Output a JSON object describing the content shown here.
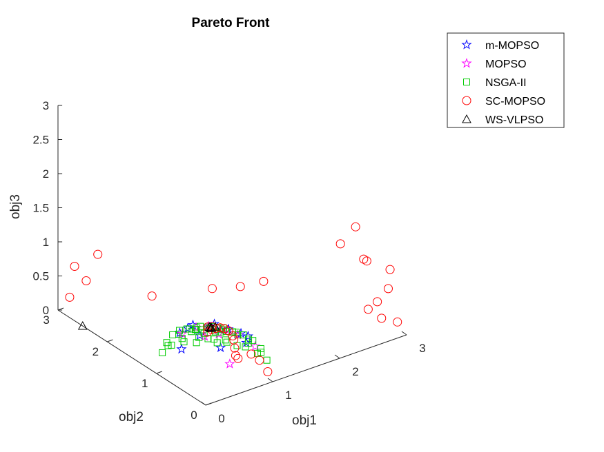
{
  "chart_data": {
    "type": "scatter",
    "projection": "3d",
    "title": "Pareto Front",
    "xlabel": "obj1",
    "ylabel": "obj2",
    "zlabel": "obj3",
    "xlim": [
      0,
      3
    ],
    "ylim": [
      0,
      3
    ],
    "zlim": [
      0,
      3
    ],
    "xticks": [
      "0",
      "1",
      "2",
      "3"
    ],
    "yticks": [
      "0",
      "1",
      "2",
      "3"
    ],
    "zticks": [
      "0",
      "0.5",
      "1",
      "1.5",
      "2",
      "2.5",
      "3"
    ],
    "grid": false,
    "legend_position": "top-right",
    "series": [
      {
        "name": "m-MOPSO",
        "marker": "star",
        "color": "#0000ff",
        "points": [
          [
            0.2,
            0.8,
            0.62
          ],
          [
            0.55,
            0.45,
            0.71
          ],
          [
            0.78,
            0.2,
            0.65
          ],
          [
            0.35,
            0.3,
            0.93
          ],
          [
            0.25,
            0.6,
            0.81
          ],
          [
            0.9,
            0.4,
            0.42
          ],
          [
            0.5,
            0.8,
            0.48
          ],
          [
            0.6,
            0.1,
            0.8
          ],
          [
            0.1,
            0.5,
            0.86
          ],
          [
            0.7,
            0.65,
            0.3
          ],
          [
            0.45,
            0.15,
            0.89
          ],
          [
            0.3,
            0.9,
            0.3
          ]
        ]
      },
      {
        "name": "MOPSO",
        "marker": "star",
        "color": "#ff00ff",
        "points": [
          [
            0.3,
            0.35,
            0.89
          ],
          [
            0.6,
            0.55,
            0.58
          ],
          [
            0.85,
            0.15,
            0.5
          ],
          [
            0.2,
            0.75,
            0.63
          ],
          [
            0.7,
            0.3,
            0.65
          ],
          [
            0.4,
            0.1,
            0.91
          ],
          [
            0.15,
            0.4,
            0.9
          ],
          [
            0.8,
            0.6,
            0.05
          ],
          [
            0.5,
            0.7,
            0.51
          ],
          [
            0.4,
            0.5,
            0.77
          ]
        ]
      },
      {
        "name": "NSGA-II",
        "marker": "square",
        "color": "#00cc00",
        "points": [
          [
            0.95,
            0.05,
            0.31
          ],
          [
            0.86,
            0.05,
            0.51
          ],
          [
            0.74,
            0.05,
            0.67
          ],
          [
            0.6,
            0.05,
            0.8
          ],
          [
            0.44,
            0.05,
            0.9
          ],
          [
            0.26,
            0.05,
            0.96
          ],
          [
            0.05,
            0.1,
            0.99
          ],
          [
            0.05,
            0.28,
            0.96
          ],
          [
            0.05,
            0.45,
            0.89
          ],
          [
            0.05,
            0.6,
            0.8
          ],
          [
            0.05,
            0.74,
            0.67
          ],
          [
            0.05,
            0.86,
            0.5
          ],
          [
            0.05,
            0.95,
            0.31
          ],
          [
            0.15,
            0.9,
            0.41
          ],
          [
            0.3,
            0.85,
            0.43
          ],
          [
            0.45,
            0.75,
            0.49
          ],
          [
            0.6,
            0.65,
            0.46
          ],
          [
            0.72,
            0.55,
            0.42
          ],
          [
            0.85,
            0.35,
            0.4
          ],
          [
            0.92,
            0.2,
            0.35
          ],
          [
            0.5,
            0.5,
            0.7
          ],
          [
            0.4,
            0.6,
            0.69
          ],
          [
            0.6,
            0.4,
            0.69
          ],
          [
            0.3,
            0.7,
            0.65
          ],
          [
            0.7,
            0.3,
            0.65
          ],
          [
            0.25,
            0.45,
            0.86
          ],
          [
            0.45,
            0.25,
            0.86
          ],
          [
            0.35,
            0.35,
            0.87
          ],
          [
            0.2,
            0.6,
            0.77
          ],
          [
            0.6,
            0.2,
            0.77
          ],
          [
            0.15,
            0.75,
            0.64
          ],
          [
            0.75,
            0.15,
            0.64
          ],
          [
            0.8,
            0.45,
            0.39
          ],
          [
            0.45,
            0.8,
            0.39
          ],
          [
            0.55,
            0.7,
            0.46
          ],
          [
            0.7,
            0.55,
            0.46
          ],
          [
            0.65,
            0.65,
            0.39
          ],
          [
            0.82,
            0.25,
            0.51
          ],
          [
            0.25,
            0.82,
            0.51
          ],
          [
            0.9,
            0.1,
            0.42
          ],
          [
            0.1,
            0.9,
            0.42
          ],
          [
            0.2,
            0.2,
            0.96
          ],
          [
            0.12,
            0.35,
            0.93
          ],
          [
            0.35,
            0.12,
            0.93
          ],
          [
            0.55,
            0.55,
            0.63
          ],
          [
            0.38,
            0.48,
            0.79
          ],
          [
            0.48,
            0.38,
            0.79
          ],
          [
            0.62,
            0.3,
            0.72
          ],
          [
            0.3,
            0.62,
            0.72
          ]
        ]
      },
      {
        "name": "SC-MOPSO",
        "marker": "circle",
        "color": "#ff0000",
        "points": [
          [
            0.1,
            0.1,
            0.99
          ],
          [
            0.2,
            0.15,
            0.97
          ],
          [
            0.3,
            0.2,
            0.93
          ],
          [
            0.4,
            0.25,
            0.88
          ],
          [
            0.5,
            0.3,
            0.81
          ],
          [
            0.6,
            0.35,
            0.72
          ],
          [
            0.7,
            0.4,
            0.59
          ],
          [
            0.75,
            0.45,
            0.49
          ],
          [
            0.8,
            0.5,
            0.33
          ],
          [
            0.83,
            0.52,
            0.2
          ],
          [
            0.85,
            0.5,
            0.16
          ],
          [
            0.25,
            0.3,
            0.92
          ],
          [
            0.35,
            0.35,
            0.87
          ],
          [
            0.9,
            0.3,
            0.3
          ],
          [
            0.95,
            0.2,
            0.24
          ],
          [
            1.0,
            0.1,
            0.1
          ],
          [
            2.9,
            0.05,
            0.2
          ],
          [
            2.7,
            0.1,
            0.3
          ],
          [
            2.5,
            0.1,
            0.5
          ],
          [
            2.6,
            0.05,
            0.6
          ],
          [
            2.8,
            0.1,
            0.7
          ],
          [
            2.9,
            0.2,
            0.9
          ],
          [
            2.7,
            0.4,
            1.0
          ],
          [
            2.8,
            0.6,
            0.9
          ],
          [
            2.6,
            0.8,
            1.1
          ],
          [
            2.9,
            0.9,
            1.2
          ],
          [
            0.1,
            2.9,
            0.2
          ],
          [
            0.2,
            2.7,
            0.5
          ],
          [
            0.1,
            2.8,
            0.7
          ],
          [
            0.3,
            2.6,
            0.9
          ],
          [
            1.4,
            1.2,
            0.7
          ],
          [
            1.2,
            1.5,
            0.6
          ],
          [
            1.6,
            1.0,
            0.8
          ],
          [
            0.3,
            1.5,
            0.8
          ]
        ]
      },
      {
        "name": "WS-VLPSO",
        "marker": "triangle",
        "color": "#000000",
        "points": [
          [
            0.3,
            0.3,
            0.9
          ],
          [
            0.4,
            0.35,
            0.85
          ],
          [
            0.35,
            0.4,
            0.84
          ],
          [
            0.45,
            0.5,
            0.74
          ],
          [
            0.0,
            2.5,
            0.0
          ]
        ]
      }
    ]
  }
}
